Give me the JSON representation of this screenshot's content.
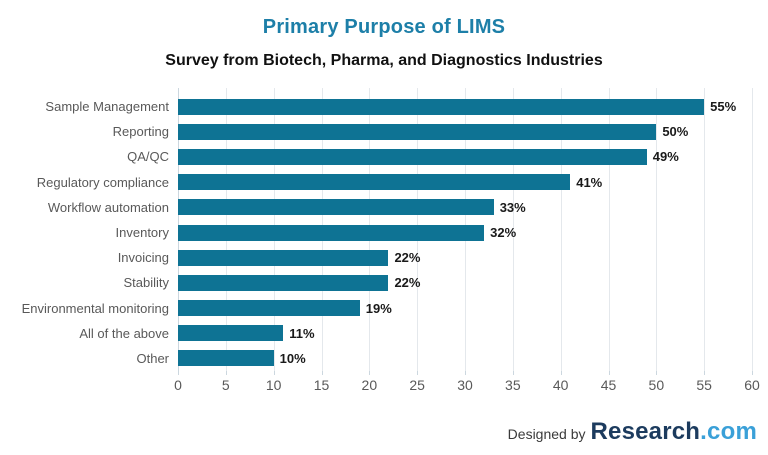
{
  "chart_data": {
    "type": "bar",
    "orientation": "horizontal",
    "title": "Primary Purpose of LIMS",
    "subtitle": "Survey from Biotech, Pharma, and Diagnostics Industries",
    "categories": [
      "Sample Management",
      "Reporting",
      "QA/QC",
      "Regulatory compliance",
      "Workflow automation",
      "Inventory",
      "Invoicing",
      "Stability",
      "Environmental monitoring",
      "All of the above",
      "Other"
    ],
    "values": [
      55,
      50,
      49,
      41,
      33,
      32,
      22,
      22,
      19,
      11,
      10
    ],
    "value_labels": [
      "55%",
      "50%",
      "49%",
      "41%",
      "33%",
      "32%",
      "22%",
      "22%",
      "19%",
      "11%",
      "10%"
    ],
    "xlabel": "",
    "ylabel": "",
    "xlim": [
      0,
      60
    ],
    "x_ticks": [
      0,
      5,
      10,
      15,
      20,
      25,
      30,
      35,
      40,
      45,
      50,
      55,
      60
    ],
    "grid": "vertical",
    "legend": "none"
  },
  "footer": {
    "designed_by": "Designed by",
    "logo_primary": "Research",
    "logo_suffix": ".com"
  },
  "colors": {
    "bar": "#0e7394",
    "title": "#1d7fa8",
    "subtitle": "#111111",
    "category_label": "#595959",
    "tick_label": "#595959",
    "value_label": "#1a1a1a",
    "gridline": "#e4e8ec",
    "axis_line": "#ccd7df",
    "designed_by": "#3a3a3a",
    "logo_primary": "#1c3b5e",
    "logo_suffix": "#3aa0d8"
  }
}
